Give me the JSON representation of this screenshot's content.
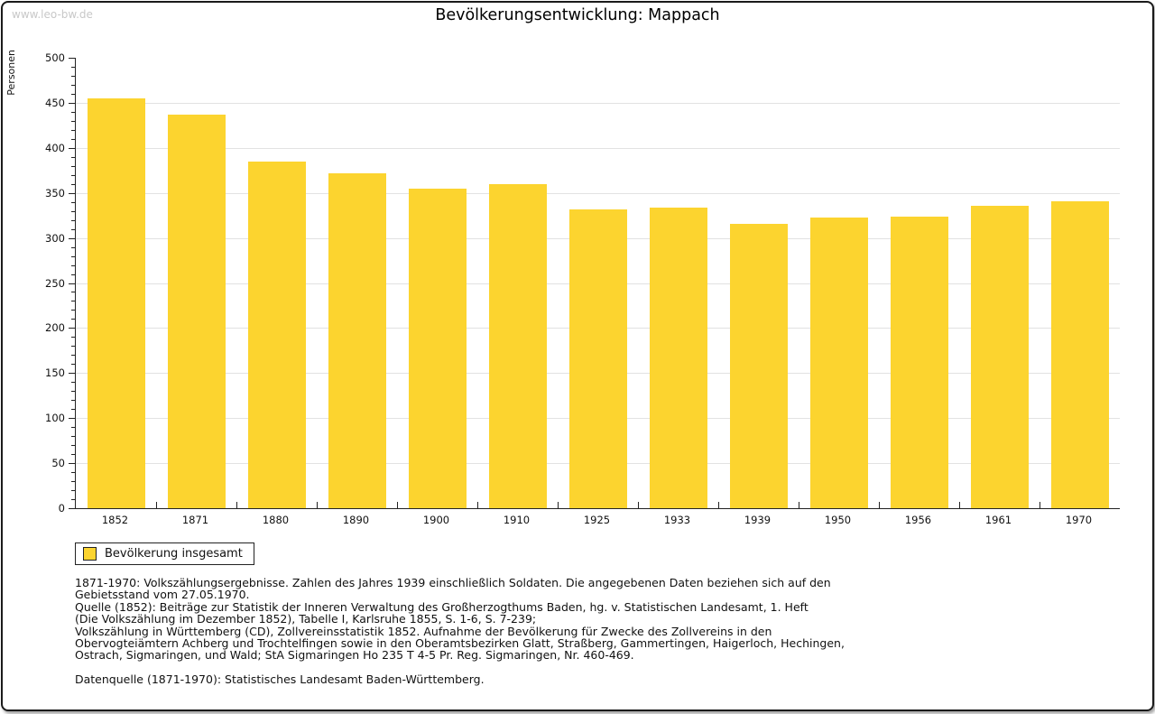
{
  "watermark": "www.leo-bw.de",
  "title": "Bevölkerungsentwicklung: Mappach",
  "chart_data": {
    "type": "bar",
    "title": "Bevölkerungsentwicklung: Mappach",
    "xlabel": "",
    "ylabel": "Personen",
    "categories": [
      "1852",
      "1871",
      "1880",
      "1890",
      "1900",
      "1910",
      "1925",
      "1933",
      "1939",
      "1950",
      "1956",
      "1961",
      "1970"
    ],
    "values": [
      455,
      437,
      385,
      372,
      355,
      360,
      332,
      334,
      316,
      323,
      324,
      336,
      341
    ],
    "ylim": [
      0,
      500
    ],
    "ytick_step": 50,
    "minor_tick_step": 10,
    "grid": "horizontal",
    "gridline_color": "#e2e2e2",
    "bar_color": "#fcd42f",
    "legend_position": "bottom-left",
    "legend_entries": [
      "Bevölkerung insgesamt"
    ]
  },
  "legend": {
    "items": [
      {
        "label": "Bevölkerung insgesamt",
        "color": "#fcd42f"
      }
    ]
  },
  "notes": [
    "1871-1970: Volkszählungsergebnisse. Zahlen des Jahres 1939 einschließlich Soldaten. Die angegebenen Daten beziehen sich auf den",
    "Gebietsstand vom 27.05.1970.",
    "Quelle (1852): Beiträge zur Statistik der Inneren Verwaltung des Großherzogthums Baden, hg. v. Statistischen Landesamt, 1. Heft",
    "(Die Volkszählung im Dezember 1852), Tabelle I, Karlsruhe 1855, S. 1-6, S. 7-239;",
    "Volkszählung in Württemberg (CD), Zollvereinsstatistik 1852. Aufnahme der Bevölkerung für Zwecke des Zollvereins in den",
    "Obervogteiämtern Achberg und Trochtelfingen sowie in den Oberamtsbezirken Glatt, Straßberg, Gammertingen, Haigerloch, Hechingen,",
    "Ostrach, Sigmaringen, und Wald; StA Sigmaringen Ho 235 T 4-5 Pr. Reg. Sigmaringen, Nr. 460-469."
  ],
  "datasource": "Datenquelle (1871-1970): Statistisches Landesamt Baden-Württemberg."
}
